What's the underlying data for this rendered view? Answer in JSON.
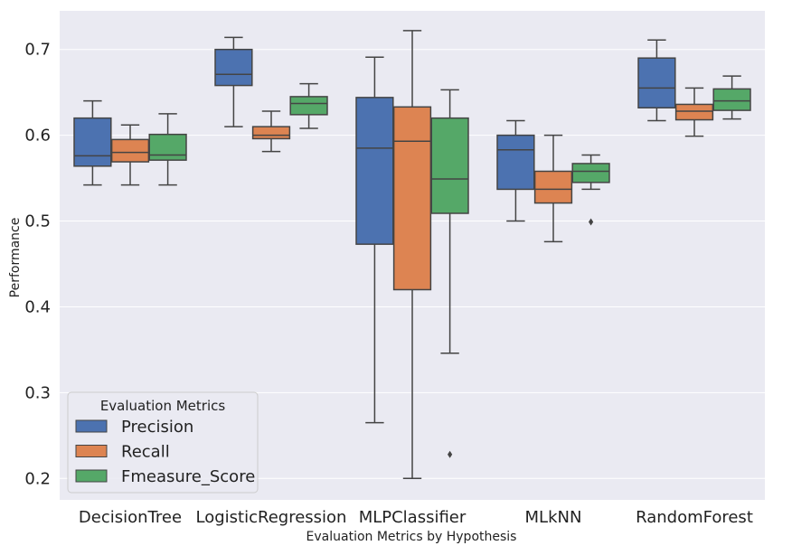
{
  "chart_data": {
    "type": "box",
    "title": "",
    "xlabel": "Evaluation Metrics by Hypothesis",
    "ylabel": "Performance",
    "ylim": [
      0.175,
      0.745
    ],
    "yticks": [
      0.2,
      0.3,
      0.4,
      0.5,
      0.6,
      0.7
    ],
    "ytick_labels": [
      "0.2",
      "0.3",
      "0.4",
      "0.5",
      "0.6",
      "0.7"
    ],
    "grid": true,
    "categories": [
      "DecisionTree",
      "LogisticRegression",
      "MLPClassifier",
      "MLkNN",
      "RandomForest"
    ],
    "legend": {
      "title": "Evaluation Metrics",
      "position": "lower-left"
    },
    "series": [
      {
        "name": "Precision",
        "color": "#4c72b0",
        "boxes": [
          {
            "whislo": 0.542,
            "q1": 0.564,
            "med": 0.576,
            "q3": 0.62,
            "whishi": 0.64,
            "fliers": []
          },
          {
            "whislo": 0.61,
            "q1": 0.658,
            "med": 0.671,
            "q3": 0.7,
            "whishi": 0.714,
            "fliers": []
          },
          {
            "whislo": 0.265,
            "q1": 0.473,
            "med": 0.585,
            "q3": 0.644,
            "whishi": 0.691,
            "fliers": []
          },
          {
            "whislo": 0.5,
            "q1": 0.537,
            "med": 0.583,
            "q3": 0.6,
            "whishi": 0.617,
            "fliers": []
          },
          {
            "whislo": 0.617,
            "q1": 0.632,
            "med": 0.655,
            "q3": 0.69,
            "whishi": 0.711,
            "fliers": []
          }
        ]
      },
      {
        "name": "Recall",
        "color": "#dd8452",
        "boxes": [
          {
            "whislo": 0.542,
            "q1": 0.569,
            "med": 0.58,
            "q3": 0.595,
            "whishi": 0.612,
            "fliers": []
          },
          {
            "whislo": 0.581,
            "q1": 0.596,
            "med": 0.6,
            "q3": 0.61,
            "whishi": 0.628,
            "fliers": []
          },
          {
            "whislo": 0.2,
            "q1": 0.42,
            "med": 0.593,
            "q3": 0.633,
            "whishi": 0.722,
            "fliers": []
          },
          {
            "whislo": 0.476,
            "q1": 0.521,
            "med": 0.537,
            "q3": 0.558,
            "whishi": 0.6,
            "fliers": []
          },
          {
            "whislo": 0.599,
            "q1": 0.618,
            "med": 0.628,
            "q3": 0.636,
            "whishi": 0.655,
            "fliers": []
          }
        ]
      },
      {
        "name": "Fmeasure_Score",
        "color": "#55a868",
        "boxes": [
          {
            "whislo": 0.542,
            "q1": 0.571,
            "med": 0.577,
            "q3": 0.601,
            "whishi": 0.625,
            "fliers": []
          },
          {
            "whislo": 0.608,
            "q1": 0.624,
            "med": 0.637,
            "q3": 0.645,
            "whishi": 0.66,
            "fliers": []
          },
          {
            "whislo": 0.346,
            "q1": 0.509,
            "med": 0.549,
            "q3": 0.62,
            "whishi": 0.653,
            "fliers": [
              0.228
            ]
          },
          {
            "whislo": 0.537,
            "q1": 0.545,
            "med": 0.558,
            "q3": 0.567,
            "whishi": 0.577,
            "fliers": [
              0.499
            ]
          },
          {
            "whislo": 0.619,
            "q1": 0.629,
            "med": 0.64,
            "q3": 0.654,
            "whishi": 0.669,
            "fliers": []
          }
        ]
      }
    ]
  }
}
